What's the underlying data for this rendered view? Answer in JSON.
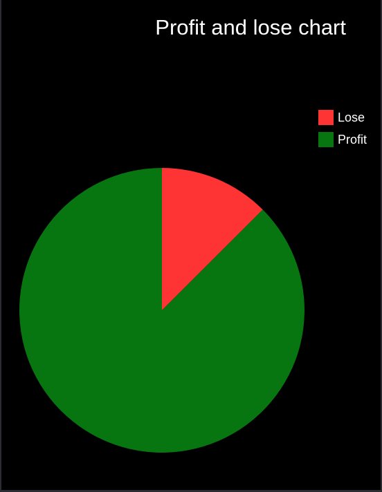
{
  "chart_data": {
    "type": "pie",
    "title": "Profit and lose chart",
    "legend_position": "top-right",
    "slices": [
      {
        "name": "Lose",
        "value": 12.5,
        "color": "#fe3434"
      },
      {
        "name": "Profit",
        "value": 87.5,
        "color": "#077510"
      }
    ]
  }
}
